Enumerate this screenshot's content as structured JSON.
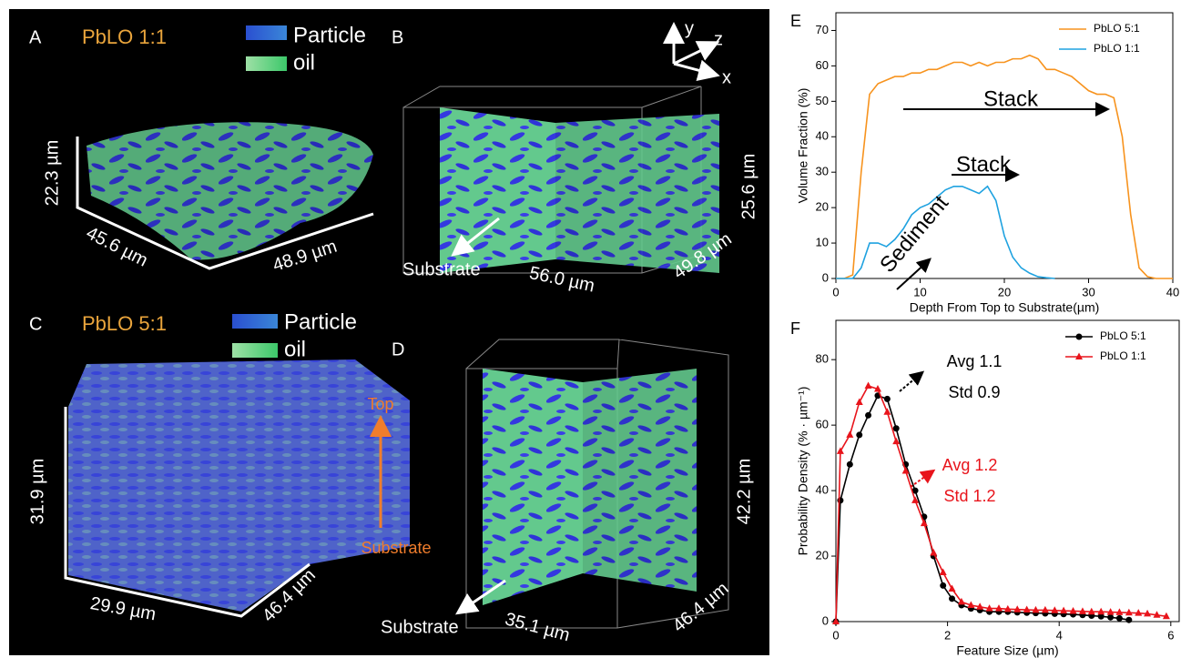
{
  "panels": {
    "a": {
      "label": "A",
      "title": "PbLO 1:1",
      "legend": [
        "Particle",
        "oil"
      ],
      "dims": [
        "22.3 µm",
        "45.6 µm",
        "48.9 µm"
      ]
    },
    "b": {
      "label": "B",
      "axes": [
        "y",
        "z",
        "x"
      ],
      "substrate": "Substrate",
      "dims": [
        "56.0 µm",
        "25.6 µm",
        "49.8 µm"
      ]
    },
    "c": {
      "label": "C",
      "title": "PbLO 5:1",
      "legend": [
        "Particle",
        "oil"
      ],
      "dims": [
        "31.9 µm",
        "29.9 µm",
        "46.4 µm"
      ]
    },
    "d": {
      "label": "D",
      "top": "Top",
      "bottom": "Substrate",
      "substrate": "Substrate",
      "dims": [
        "35.1 µm",
        "42.2 µm",
        "46.4 µm"
      ]
    }
  },
  "chart_data": [
    {
      "type": "line",
      "label": "E",
      "xlabel": "Depth From Top to Substrate(µm)",
      "ylabel": "Volume Fraction (%)",
      "x": [
        0,
        1,
        2,
        3,
        4,
        5,
        6,
        7,
        8,
        9,
        10,
        11,
        12,
        13,
        14,
        15,
        16,
        17,
        18,
        19,
        20,
        21,
        22,
        23,
        24,
        25,
        26,
        27,
        28,
        29,
        30,
        31,
        32,
        33,
        34,
        35,
        36,
        37,
        38,
        39,
        40
      ],
      "series": [
        {
          "name": "PbLO 5:1",
          "color": "#f7931e",
          "values": [
            0,
            0,
            1,
            30,
            52,
            55,
            56,
            57,
            57,
            58,
            58,
            59,
            59,
            60,
            61,
            61,
            60,
            61,
            60,
            61,
            61,
            62,
            62,
            63,
            62,
            59,
            59,
            58,
            57,
            55,
            53,
            52,
            52,
            51,
            40,
            18,
            3,
            0.5,
            0,
            0,
            0
          ]
        },
        {
          "name": "PbLO 1:1",
          "color": "#1fa2e0",
          "values": [
            0,
            0,
            0,
            3,
            10,
            10,
            9,
            11,
            14,
            18,
            20,
            21,
            23,
            25,
            26,
            26,
            25,
            24,
            26,
            22,
            12,
            6,
            3,
            1.5,
            0.5,
            0.2,
            0,
            null,
            null,
            null,
            null,
            null,
            null,
            null,
            null,
            null,
            null,
            null,
            null,
            null,
            null
          ]
        }
      ],
      "xlim": [
        0,
        40
      ],
      "xticks": [
        0,
        10,
        20,
        30,
        40
      ],
      "ylim": [
        0,
        75
      ],
      "yticks": [
        0,
        10,
        20,
        30,
        40,
        50,
        60,
        70
      ],
      "legend": "upper right",
      "annotations": [
        "Stack",
        "Stack",
        "Sediment"
      ]
    },
    {
      "type": "line",
      "label": "F",
      "xlabel": "Feature Size (µm)",
      "ylabel": "Probability Density (% · µm⁻¹)",
      "x": [
        0,
        0.08,
        0.25,
        0.42,
        0.58,
        0.75,
        0.92,
        1.08,
        1.25,
        1.42,
        1.58,
        1.75,
        1.92,
        2.08,
        2.25,
        2.42,
        2.58,
        2.75,
        2.92,
        3.08,
        3.25,
        3.42,
        3.58,
        3.75,
        3.92,
        4.08,
        4.25,
        4.42,
        4.58,
        4.75,
        4.92,
        5.08,
        5.25,
        5.42,
        5.58,
        5.75,
        5.92
      ],
      "series": [
        {
          "name": "PbLO 5:1",
          "color": "#000000",
          "marker": "circle",
          "values": [
            0,
            37,
            48,
            57,
            63,
            69,
            68,
            59,
            48,
            40,
            32,
            20,
            11,
            7,
            5,
            4,
            3.5,
            3,
            3,
            3,
            2.8,
            2.7,
            2.6,
            2.5,
            2.4,
            2.3,
            2.2,
            2,
            1.8,
            1.6,
            1.3,
            1,
            0.5,
            null,
            null,
            null,
            null
          ]
        },
        {
          "name": "PbLO 1:1",
          "color": "#e8141b",
          "marker": "triangle",
          "values": [
            0,
            52,
            57,
            67,
            72,
            71,
            64,
            55,
            46,
            37,
            30,
            21,
            15,
            10,
            6,
            5,
            4.5,
            4,
            4,
            3.8,
            3.7,
            3.6,
            3.5,
            3.5,
            3.4,
            3.3,
            3.2,
            3.1,
            3,
            3,
            2.9,
            2.8,
            2.7,
            2.6,
            2.4,
            2,
            1.6
          ]
        }
      ],
      "xlim": [
        0,
        6.15
      ],
      "xticks": [
        0,
        2,
        4,
        6
      ],
      "ylim": [
        0,
        92
      ],
      "yticks": [
        0,
        20,
        40,
        60,
        80
      ],
      "legend": "upper right",
      "annotations": [
        "Avg 1.1",
        "Std 0.9",
        "Avg 1.2",
        "Std 1.2"
      ]
    }
  ]
}
